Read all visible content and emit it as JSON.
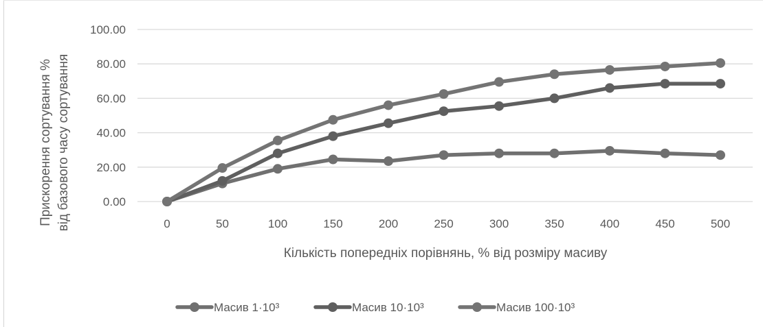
{
  "chart_data": {
    "type": "line",
    "title": "",
    "xlabel": "Кількість попередніх порівнянь, % від розміру масиву",
    "ylabel_lines": [
      "Прискорення сортування %",
      "від базового часу сортування"
    ],
    "x": [
      0,
      50,
      100,
      150,
      200,
      250,
      300,
      350,
      400,
      450,
      500
    ],
    "x_tick_labels": [
      "0",
      "50",
      "100",
      "150",
      "200",
      "250",
      "300",
      "350",
      "400",
      "450",
      "500"
    ],
    "y_tick_labels": [
      "0.00",
      "20.00",
      "40.00",
      "60.00",
      "80.00",
      "100.00"
    ],
    "y_ticks": [
      0,
      20,
      40,
      60,
      80,
      100
    ],
    "ylim": [
      0,
      100
    ],
    "grid": "horizontal",
    "legend_position": "bottom",
    "series": [
      {
        "name": "Масив 1·10³",
        "color": "#707070",
        "values": [
          0,
          10.5,
          19,
          24.5,
          23.5,
          27,
          28,
          28,
          29.5,
          28,
          27
        ]
      },
      {
        "name": "Масив 10·10³",
        "color": "#5f5f5f",
        "values": [
          0,
          12,
          28,
          38,
          45.5,
          52.5,
          55.5,
          60,
          66,
          68.5,
          68.5
        ]
      },
      {
        "name": "Масив 100·10³",
        "color": "#747474",
        "values": [
          0,
          19.5,
          35.5,
          47.5,
          56,
          62.5,
          69.5,
          74,
          76.5,
          78.5,
          80.5
        ]
      }
    ]
  }
}
